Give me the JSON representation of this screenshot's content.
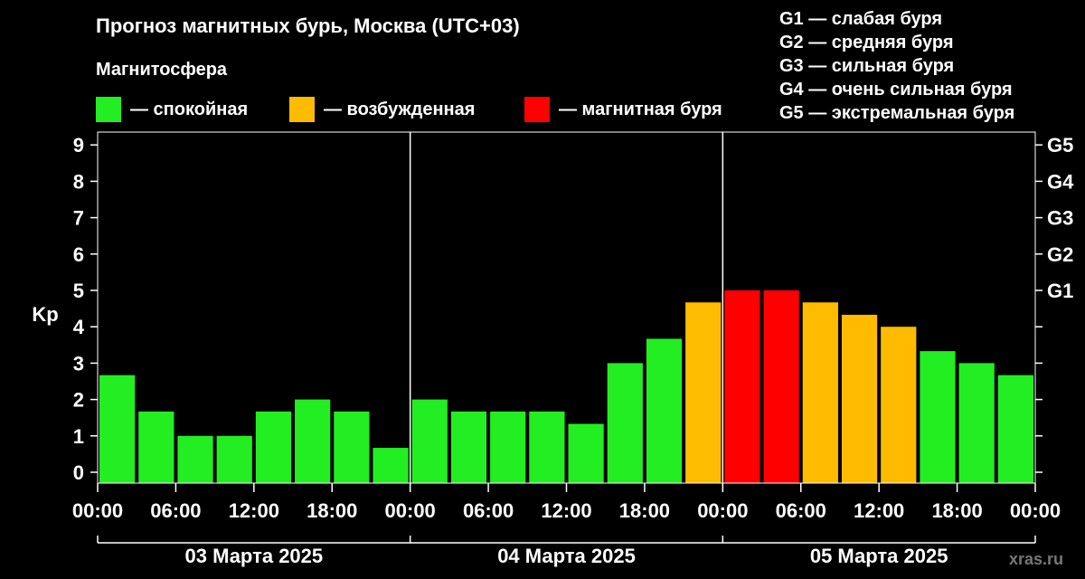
{
  "title": "Прогноз магнитных бурь, Москва (UTC+03)",
  "legend": {
    "heading": "Магнитосфера",
    "items": [
      {
        "label": "— спокойная",
        "color": "#22ee22"
      },
      {
        "label": "— возбужденная",
        "color": "#ffbb00"
      },
      {
        "label": "— магнитная буря",
        "color": "#ff0000"
      }
    ]
  },
  "g_scale_legend": [
    "G1 — слабая буря",
    "G2 — средняя буря",
    "G3 — сильная буря",
    "G4 — очень сильная буря",
    "G5 — экстремальная буря"
  ],
  "watermark": "xras.ru",
  "chart_data": {
    "type": "bar",
    "ylabel": "Kp",
    "ylim": [
      0,
      9
    ],
    "y_ticks": [
      0,
      1,
      2,
      3,
      4,
      5,
      6,
      7,
      8,
      9
    ],
    "y_right_ticks": [
      {
        "value": 5,
        "label": "G1"
      },
      {
        "value": 6,
        "label": "G2"
      },
      {
        "value": 7,
        "label": "G3"
      },
      {
        "value": 8,
        "label": "G4"
      },
      {
        "value": 9,
        "label": "G5"
      }
    ],
    "x_tick_labels": [
      "00:00",
      "06:00",
      "12:00",
      "18:00",
      "00:00",
      "06:00",
      "12:00",
      "18:00",
      "00:00",
      "06:00",
      "12:00",
      "18:00",
      "00:00"
    ],
    "days": [
      "03 Марта 2025",
      "04 Марта 2025",
      "05 Марта 2025"
    ],
    "bar_interval_hours": 3,
    "values": [
      2.67,
      1.67,
      1.0,
      1.0,
      1.67,
      2.0,
      1.67,
      0.67,
      2.0,
      1.67,
      1.67,
      1.67,
      1.33,
      3.0,
      3.67,
      4.67,
      5.0,
      5.0,
      4.67,
      4.33,
      4.0,
      3.33,
      3.0,
      2.67
    ],
    "levels": [
      "quiet",
      "quiet",
      "quiet",
      "quiet",
      "quiet",
      "quiet",
      "quiet",
      "quiet",
      "quiet",
      "quiet",
      "quiet",
      "quiet",
      "quiet",
      "quiet",
      "quiet",
      "active",
      "storm",
      "storm",
      "active",
      "active",
      "active",
      "quiet",
      "quiet",
      "quiet"
    ],
    "colors": {
      "quiet": "#22ee22",
      "active": "#ffbb00",
      "storm": "#ff0000"
    },
    "grid": false
  }
}
